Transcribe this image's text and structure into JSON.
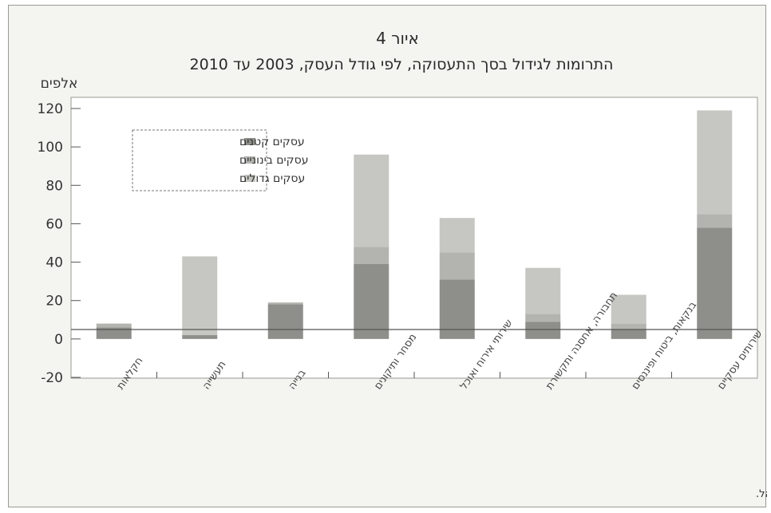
{
  "chart_data": {
    "type": "bar",
    "stacked": true,
    "title": "איור 4",
    "subtitle": "התרומות לגידול בסך התעסוקה, לפי גודל העסק, 2003 עד 2010",
    "ylabel": "אלפים",
    "xlabel": "",
    "ylim": [
      -20,
      120
    ],
    "yticks": [
      "-20",
      "0",
      "20",
      "40",
      "60",
      "80",
      "100",
      "120"
    ],
    "grid": false,
    "legend_position": "top-left",
    "categories": [
      "חקלאות",
      "תעשייה",
      "בנייה",
      "מסחר ותיקונים",
      "שירותי אירוח ואוכל",
      "תחבורה, אחסנה ותקשורת",
      "בנקאות, ביטוח ופיננסים",
      "שירותים עסקיים"
    ],
    "series": [
      {
        "name": "עסקים קטנים",
        "color": "#8e8e8a",
        "values": [
          6,
          2,
          18,
          39,
          31,
          9,
          5,
          58
        ]
      },
      {
        "name": "עסקים בינוניים",
        "color": "#b3b3af",
        "values": [
          2,
          0,
          1,
          9,
          14,
          4,
          3,
          7
        ]
      },
      {
        "name": "עסקים גדולים",
        "color": "#c6c6c2",
        "values": [
          0,
          41,
          0,
          48,
          18,
          24,
          15,
          54
        ]
      }
    ],
    "source": "המקור: הלשכה המרכזית לסטטיסטיקה ועיבודי בנק ישראל."
  }
}
